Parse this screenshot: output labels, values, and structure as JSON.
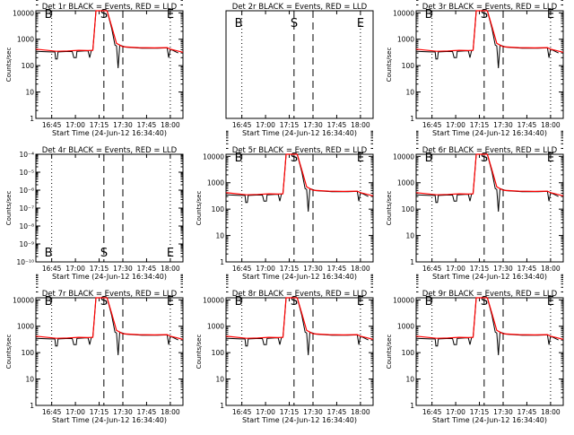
{
  "colors": {
    "events": "#000000",
    "lld": "#ff0000",
    "frame": "#000000",
    "background": "#ffffff"
  },
  "chart_data": [
    {
      "type": "line",
      "title": "Det 1r BLACK = Events, RED = LLD",
      "xlabel": "Start Time (24-Jun-12 16:34:40)",
      "ylabel": "Counts/sec",
      "yscale": "log",
      "ylim": [
        1,
        12000
      ],
      "yticks": [
        "1",
        "10",
        "100",
        "1000",
        "10000"
      ],
      "xticks": [
        "16:45",
        "17:00",
        "17:15",
        "17:30",
        "17:45",
        "18:00"
      ],
      "markers": [
        "B",
        "S",
        "E"
      ],
      "has_data": true,
      "series": [
        {
          "name": "Events",
          "color": "#000000"
        },
        {
          "name": "LLD",
          "color": "#ff0000"
        }
      ]
    },
    {
      "type": "line",
      "title": "Det 2r BLACK = Events, RED = LLD",
      "xlabel": "Start Time (24-Jun-12 16:34:40)",
      "ylabel": "",
      "yscale": "none",
      "ylim": [
        0,
        1
      ],
      "yticks": [],
      "xticks": [
        "16:45",
        "17:00",
        "17:15",
        "17:30",
        "17:45",
        "18:00"
      ],
      "markers": [
        "B",
        "S",
        "E"
      ],
      "has_data": false,
      "series": []
    },
    {
      "type": "line",
      "title": "Det 3r BLACK = Events, RED = LLD",
      "xlabel": "Start Time (24-Jun-12 16:34:40)",
      "ylabel": "Counts/sec",
      "yscale": "log",
      "ylim": [
        1,
        12000
      ],
      "yticks": [
        "1",
        "10",
        "100",
        "1000",
        "10000"
      ],
      "xticks": [
        "16:45",
        "17:00",
        "17:15",
        "17:30",
        "17:45",
        "18:00"
      ],
      "markers": [
        "B",
        "S",
        "E"
      ],
      "has_data": true,
      "series": [
        {
          "name": "Events",
          "color": "#000000"
        },
        {
          "name": "LLD",
          "color": "#ff0000"
        }
      ]
    },
    {
      "type": "line",
      "title": "Det 4r BLACK = Events, RED = LLD",
      "xlabel": "Start Time (24-Jun-12 16:34:40)",
      "ylabel": "Counts/sec",
      "yscale": "log",
      "ylim": [
        1e-10,
        0.0001
      ],
      "yticks": [
        "10⁻¹⁰",
        "10⁻⁹",
        "10⁻⁸",
        "10⁻⁷",
        "10⁻⁶",
        "10⁻⁵",
        "10⁻⁴"
      ],
      "xticks": [
        "16:45",
        "17:00",
        "17:15",
        "17:30",
        "17:45",
        "18:00"
      ],
      "markers": [
        "B",
        "S",
        "E"
      ],
      "has_data": false,
      "series": []
    },
    {
      "type": "line",
      "title": "Det 5r BLACK = Events, RED = LLD",
      "xlabel": "Start Time (24-Jun-12 16:34:40)",
      "ylabel": "Counts/sec",
      "yscale": "log",
      "ylim": [
        1,
        12000
      ],
      "yticks": [
        "1",
        "10",
        "100",
        "1000",
        "10000"
      ],
      "xticks": [
        "16:45",
        "17:00",
        "17:15",
        "17:30",
        "17:45",
        "18:00"
      ],
      "markers": [
        "B",
        "S",
        "E"
      ],
      "has_data": true,
      "series": [
        {
          "name": "Events",
          "color": "#000000"
        },
        {
          "name": "LLD",
          "color": "#ff0000"
        }
      ]
    },
    {
      "type": "line",
      "title": "Det 6r BLACK = Events, RED = LLD",
      "xlabel": "Start Time (24-Jun-12 16:34:40)",
      "ylabel": "Counts/sec",
      "yscale": "log",
      "ylim": [
        1,
        12000
      ],
      "yticks": [
        "1",
        "10",
        "100",
        "1000",
        "10000"
      ],
      "xticks": [
        "16:45",
        "17:00",
        "17:15",
        "17:30",
        "17:45",
        "18:00"
      ],
      "markers": [
        "B",
        "S",
        "E"
      ],
      "has_data": true,
      "series": [
        {
          "name": "Events",
          "color": "#000000"
        },
        {
          "name": "LLD",
          "color": "#ff0000"
        }
      ]
    },
    {
      "type": "line",
      "title": "Det 7r BLACK = Events, RED = LLD",
      "xlabel": "Start Time (24-Jun-12 16:34:40)",
      "ylabel": "Counts/sec",
      "yscale": "log",
      "ylim": [
        1,
        12000
      ],
      "yticks": [
        "1",
        "10",
        "100",
        "1000",
        "10000"
      ],
      "xticks": [
        "16:45",
        "17:00",
        "17:15",
        "17:30",
        "17:45",
        "18:00"
      ],
      "markers": [
        "B",
        "S",
        "E"
      ],
      "has_data": true,
      "series": [
        {
          "name": "Events",
          "color": "#000000"
        },
        {
          "name": "LLD",
          "color": "#ff0000"
        }
      ]
    },
    {
      "type": "line",
      "title": "Det 8r BLACK = Events, RED = LLD",
      "xlabel": "Start Time (24-Jun-12 16:34:40)",
      "ylabel": "Counts/sec",
      "yscale": "log",
      "ylim": [
        1,
        12000
      ],
      "yticks": [
        "1",
        "10",
        "100",
        "1000",
        "10000"
      ],
      "xticks": [
        "16:45",
        "17:00",
        "17:15",
        "17:30",
        "17:45",
        "18:00"
      ],
      "markers": [
        "B",
        "S",
        "E"
      ],
      "has_data": true,
      "series": [
        {
          "name": "Events",
          "color": "#000000"
        },
        {
          "name": "LLD",
          "color": "#ff0000"
        }
      ]
    },
    {
      "type": "line",
      "title": "Det 9r BLACK = Events, RED = LLD",
      "xlabel": "Start Time (24-Jun-12 16:34:40)",
      "ylabel": "Counts/sec",
      "yscale": "log",
      "ylim": [
        1,
        12000
      ],
      "yticks": [
        "1",
        "10",
        "100",
        "1000",
        "10000"
      ],
      "xticks": [
        "16:45",
        "17:00",
        "17:15",
        "17:30",
        "17:45",
        "18:00"
      ],
      "markers": [
        "B",
        "S",
        "E"
      ],
      "has_data": true,
      "series": [
        {
          "name": "Events",
          "color": "#000000"
        },
        {
          "name": "LLD",
          "color": "#ff0000"
        }
      ]
    }
  ]
}
